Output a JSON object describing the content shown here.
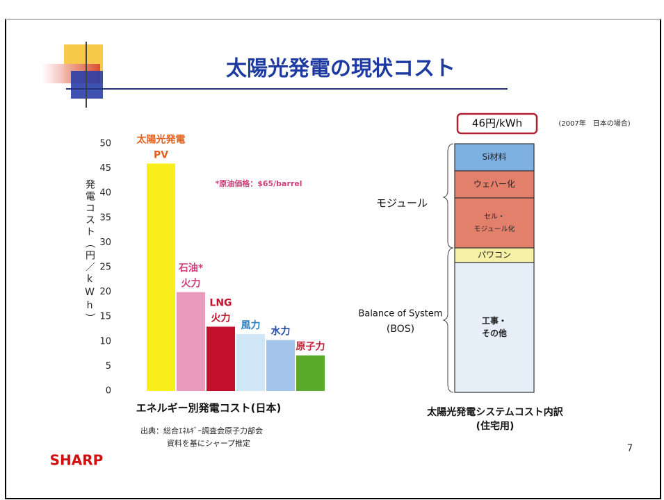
{
  "slide": {
    "title": "太陽光発電の現状コスト",
    "page_number": "7",
    "logo": "SHARP",
    "source": [
      "出典：総合ｴﾈﾙｷﾞｰ調査会原子力部会",
      "資料を基にシャープ推定"
    ]
  },
  "chart_data": {
    "type": "bar",
    "title": "エネルギー別発電コスト(日本)",
    "y_label": "発電コスト（円／kWh）",
    "annotation": "*原油価格：$65/barrel",
    "categories": [
      [
        "太陽光発電",
        "PV"
      ],
      [
        "石油*",
        "火力"
      ],
      [
        "LNG",
        "火力"
      ],
      [
        "風力"
      ],
      [
        "水力"
      ],
      [
        "原子力"
      ]
    ],
    "values": [
      46,
      20,
      13,
      11.5,
      10.3,
      7.2
    ],
    "colors": [
      "#f7ee1c",
      "#ea9bbb",
      "#c40f2c",
      "#cfe6f6",
      "#a3c5ec",
      "#5caa2c"
    ],
    "label_colors": [
      "#e0601e",
      "#cc3f7a",
      "#c4102a",
      "#2c7fc4",
      "#1f4ea0",
      "#c4203c"
    ],
    "ylim": [
      0,
      50
    ],
    "yticks": [
      0,
      5,
      10,
      15,
      20,
      25,
      30,
      35,
      40,
      45,
      50
    ]
  },
  "breakdown": {
    "title": [
      "太陽光発電システムコスト内訳",
      "(住宅用)"
    ],
    "total": "46円/kWh",
    "note": "(2007年　日本の場合)",
    "segments": [
      [
        "Si材料"
      ],
      [
        "ウェハー化"
      ],
      [
        "セル・",
        "モジュール化"
      ],
      [
        "パワコン"
      ],
      [
        "工事・",
        "その他"
      ]
    ],
    "groups": [
      [
        "モジュール"
      ],
      [
        "Balance of System",
        "(BOS)"
      ]
    ]
  }
}
